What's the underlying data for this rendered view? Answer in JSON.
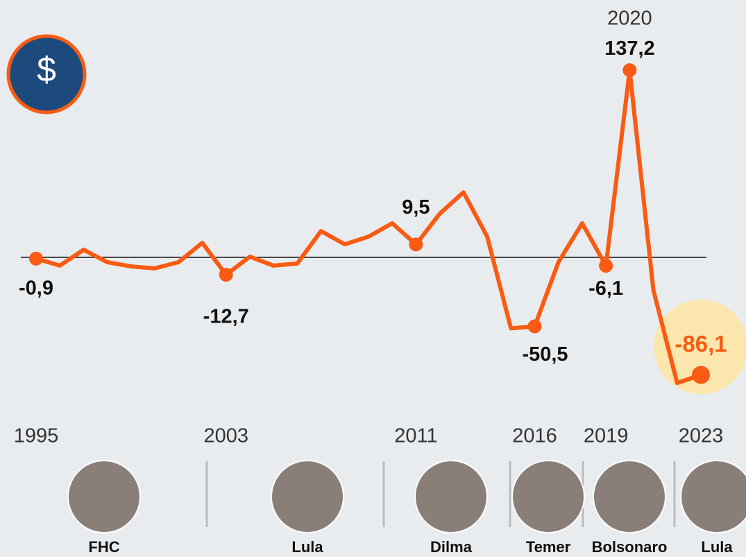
{
  "chart_data": {
    "type": "line",
    "icon": "$",
    "x": [
      1995,
      1996,
      1997,
      1998,
      1999,
      2000,
      2001,
      2002,
      2003,
      2004,
      2005,
      2006,
      2007,
      2008,
      2009,
      2010,
      2011,
      2012,
      2013,
      2014,
      2015,
      2016,
      2017,
      2018,
      2019,
      2020,
      2021,
      2022,
      2023
    ],
    "series": [
      {
        "color": "#f95b13",
        "values": [
          -0.9,
          -6,
          5.6,
          -3.5,
          -6.6,
          -8,
          -3.5,
          10.7,
          -12.7,
          0.5,
          -6,
          -4.5,
          19.3,
          9.6,
          15.2,
          25,
          9.5,
          32,
          47.7,
          15.2,
          -52,
          -50.5,
          -3.5,
          25,
          -6.1,
          137.2,
          -24,
          -92,
          -86.1
        ],
        "value_labels": [
          "-0,9",
          null,
          null,
          null,
          null,
          null,
          null,
          null,
          "-12,7",
          null,
          null,
          null,
          null,
          null,
          null,
          null,
          "9,5",
          null,
          null,
          null,
          null,
          "-50,5",
          null,
          null,
          "-6,1",
          "137,2",
          null,
          null,
          "-86,1"
        ]
      }
    ],
    "annotations": [
      {
        "x": 2020,
        "label": "2020"
      }
    ],
    "xticks": [
      1995,
      2003,
      2011,
      2016,
      2019,
      2023
    ],
    "ylim": [
      -95,
      150
    ],
    "presidents": [
      "FHC",
      "Lula",
      "Dilma",
      "Temer",
      "Bolsonaro",
      "Lula"
    ]
  }
}
